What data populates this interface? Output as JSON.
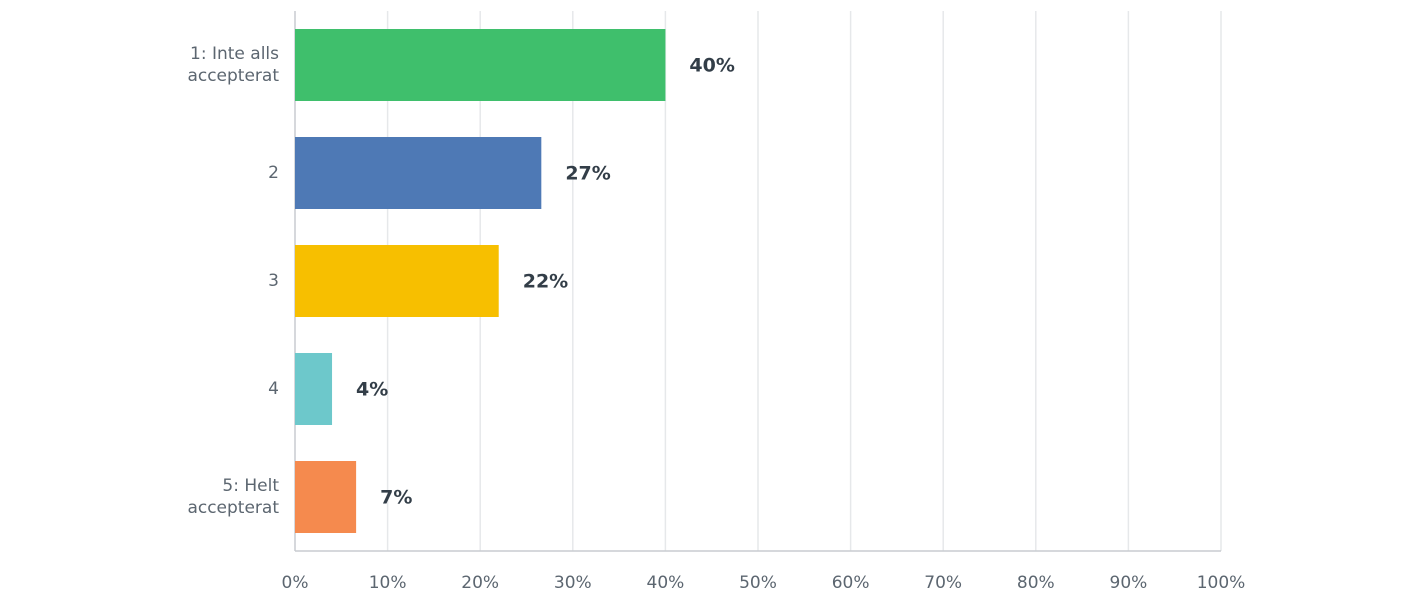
{
  "chart_data": {
    "type": "hbar",
    "categories": [
      "1: Inte alls accepterat",
      "2",
      "3",
      "4",
      "5: Helt accepterat"
    ],
    "values": [
      40,
      26.6,
      22,
      4,
      6.6
    ],
    "value_labels": [
      "40%",
      "27%",
      "22%",
      "4%",
      "7%"
    ],
    "colors": [
      "#3fbf6c",
      "#4e79b5",
      "#f7bf00",
      "#6dc8cb",
      "#f58a4e"
    ],
    "xlim": [
      0,
      100
    ],
    "xticks": [
      {
        "value": 0,
        "label": "0%"
      },
      {
        "value": 10,
        "label": "10%"
      },
      {
        "value": 20,
        "label": "20%"
      },
      {
        "value": 30,
        "label": "30%"
      },
      {
        "value": 40,
        "label": "40%"
      },
      {
        "value": 50,
        "label": "50%"
      },
      {
        "value": 60,
        "label": "60%"
      },
      {
        "value": 70,
        "label": "70%"
      },
      {
        "value": 80,
        "label": "80%"
      },
      {
        "value": 90,
        "label": "90%"
      },
      {
        "value": 100,
        "label": "100%"
      }
    ],
    "grid": true
  }
}
